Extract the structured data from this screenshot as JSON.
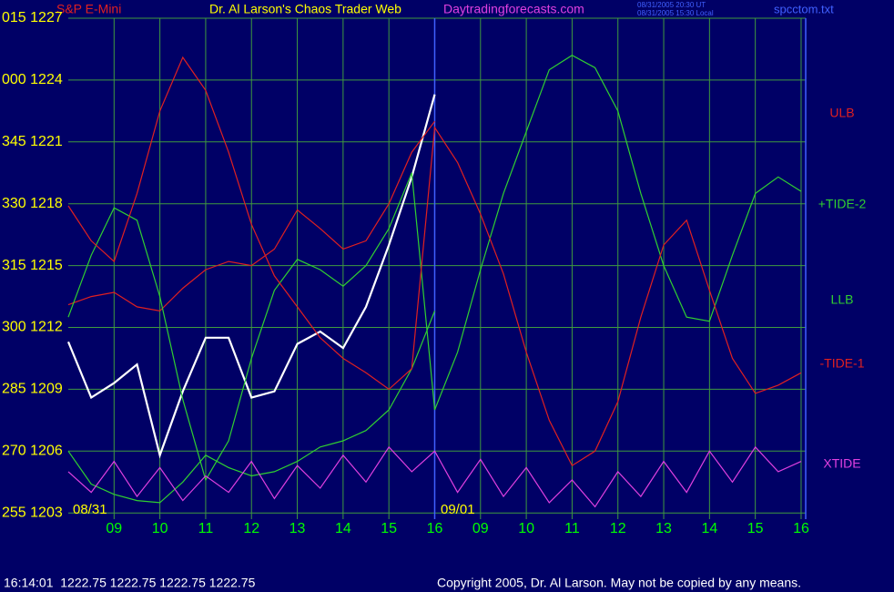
{
  "chart_data": {
    "type": "line",
    "title": "Dr. Al Larson's Chaos Trader Web",
    "subtitle": "Daytradingforecasts.com",
    "instrument": "S&P E-Mini",
    "timestamps": [
      "08/31/2005 20:30 UT",
      "08/31/2005 15:30 Local"
    ],
    "file": "spcctom.txt",
    "status": "16:14:01  1222.75 1222.75 1222.75 1222.75",
    "copyright": "Copyright 2005, Dr. Al Larson. May not be copied by any means.",
    "day_labels": [
      "08/31",
      "09/01"
    ],
    "x": [
      0,
      0.5,
      1,
      1.5,
      2,
      2.5,
      3,
      3.5,
      4,
      4.5,
      5,
      5.5,
      6,
      6.5,
      7,
      7.5,
      8,
      8.5,
      9,
      9.5,
      10,
      10.5,
      11,
      11.5,
      12,
      12.5,
      13,
      13.5,
      14,
      14.5,
      15,
      15.5,
      16
    ],
    "xlim": [
      0,
      16.1
    ],
    "xticks": [
      {
        "value": 1,
        "label": "09"
      },
      {
        "value": 2,
        "label": "10"
      },
      {
        "value": 3,
        "label": "11"
      },
      {
        "value": 4,
        "label": "12"
      },
      {
        "value": 5,
        "label": "13"
      },
      {
        "value": 6,
        "label": "14"
      },
      {
        "value": 7,
        "label": "15"
      },
      {
        "value": 8,
        "label": "16"
      },
      {
        "value": 9,
        "label": "09"
      },
      {
        "value": 10,
        "label": "10"
      },
      {
        "value": 11,
        "label": "11"
      },
      {
        "value": 12,
        "label": "12"
      },
      {
        "value": 13,
        "label": "13"
      },
      {
        "value": 14,
        "label": "14"
      },
      {
        "value": 15,
        "label": "15"
      },
      {
        "value": 16,
        "label": "16"
      }
    ],
    "ylim": [
      1202.7,
      1227
    ],
    "yticks": [
      {
        "value": 1227,
        "label": "015  1227"
      },
      {
        "value": 1224,
        "label": "000  1224"
      },
      {
        "value": 1221,
        "label": "345  1221"
      },
      {
        "value": 1218,
        "label": "330  1218"
      },
      {
        "value": 1215,
        "label": "315  1215"
      },
      {
        "value": 1212,
        "label": "300  1212"
      },
      {
        "value": 1209,
        "label": "285  1209"
      },
      {
        "value": 1206,
        "label": "270  1206"
      },
      {
        "value": 1203,
        "label": "255  1203"
      }
    ],
    "grid": true,
    "series": [
      {
        "color": "#ffffff",
        "values": [
          1211.3,
          1208.6,
          1209.3,
          1210.2,
          1205.8,
          1208.9,
          1211.5,
          1211.5,
          1208.6,
          1208.9,
          1211.2,
          1211.8,
          1211.0,
          1213.0,
          1216.0,
          1219.3,
          1223.3,
          null,
          null,
          null,
          null,
          null,
          null,
          null,
          null,
          null,
          null,
          null,
          null,
          null,
          null,
          null,
          null
        ]
      },
      {
        "name": "ULB",
        "color": "#e02020",
        "values": [
          1213.1,
          1213.5,
          1213.7,
          1213.0,
          1212.8,
          1213.9,
          1214.8,
          1215.2,
          1215.0,
          1215.8,
          1217.7,
          1216.8,
          1215.8,
          1216.2,
          1218.0,
          1220.5,
          1222.0,
          null,
          null,
          null,
          null,
          null,
          null,
          null,
          null,
          null,
          null,
          null,
          null,
          null,
          null,
          null,
          null
        ]
      },
      {
        "name": "+TIDE-2",
        "color": "#30d030",
        "values": [
          1212.5,
          1215.5,
          1217.8,
          1217.2,
          1213.5,
          1208.5,
          1204.6,
          1206.5,
          1210.5,
          1213.8,
          1215.3,
          1214.8,
          1214.0,
          1215.0,
          1216.8,
          1219.5,
          1208.0,
          1210.8,
          1214.8,
          1218.5,
          1221.5,
          1224.5,
          1225.2,
          1224.6,
          1222.5,
          1218.5,
          1215.0,
          1212.5,
          1212.3,
          1215.5,
          1218.5,
          1219.3,
          1218.6
        ]
      },
      {
        "name": "LLB",
        "color": "#30d030",
        "values": [
          1206.0,
          1204.4,
          1203.9,
          1203.6,
          1203.5,
          1204.5,
          1205.8,
          1205.2,
          1204.8,
          1205.0,
          1205.5,
          1206.2,
          1206.5,
          1207.0,
          1208.0,
          1210.0,
          1212.8,
          null,
          null,
          null,
          null,
          null,
          null,
          null,
          null,
          null,
          null,
          null,
          null,
          null,
          null,
          null,
          null
        ]
      },
      {
        "name": "-TIDE-1",
        "color": "#e02020",
        "values": [
          1217.9,
          1216.2,
          1215.2,
          1218.5,
          1222.5,
          1225.1,
          1223.5,
          1220.5,
          1217.0,
          1214.5,
          1213.0,
          1211.5,
          1210.5,
          1209.8,
          1209.0,
          1210.0,
          1221.7,
          1220.0,
          1217.5,
          1214.6,
          1210.8,
          1207.5,
          1205.3,
          1206.0,
          1208.4,
          1212.5,
          1216.0,
          1217.2,
          1213.8,
          1210.5,
          1208.8,
          1209.2,
          1209.8
        ]
      },
      {
        "name": "XTIDE",
        "color": "#e040e0",
        "values": [
          1205.0,
          1204.0,
          1205.5,
          1203.8,
          1205.2,
          1203.6,
          1204.8,
          1204.0,
          1205.5,
          1203.7,
          1205.3,
          1204.2,
          1205.8,
          1204.5,
          1206.2,
          1205.0,
          1206.0,
          1204.0,
          1205.6,
          1203.8,
          1205.2,
          1203.5,
          1204.6,
          1203.3,
          1205.0,
          1203.8,
          1205.5,
          1204.0,
          1206.0,
          1204.5,
          1206.2,
          1205.0,
          1205.5
        ]
      }
    ]
  }
}
